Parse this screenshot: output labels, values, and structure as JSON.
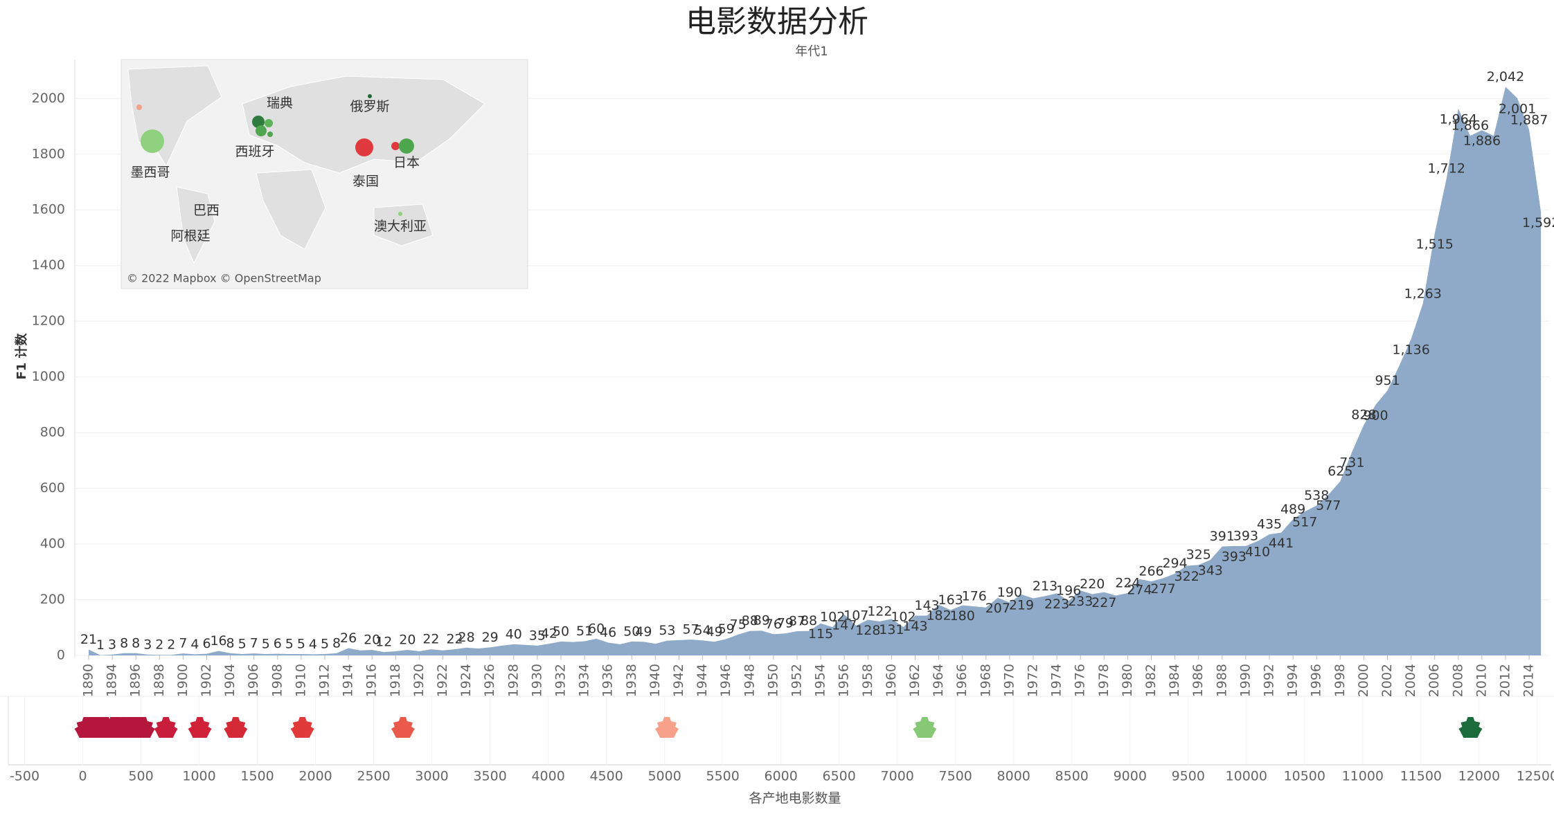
{
  "title": "电影数据分析",
  "subtitle": "年代1",
  "chart_data": [
    {
      "type": "area",
      "y_label": "F1 计数",
      "color": "#8eaac8",
      "categories": [
        1890,
        1891,
        1894,
        1895,
        1896,
        1897,
        1898,
        1899,
        1900,
        1901,
        1902,
        1903,
        1904,
        1905,
        1906,
        1907,
        1908,
        1909,
        1910,
        1911,
        1912,
        1913,
        1914,
        1915,
        1916,
        1917,
        1918,
        1919,
        1920,
        1921,
        1922,
        1923,
        1924,
        1925,
        1926,
        1927,
        1928,
        1929,
        1930,
        1931,
        1932,
        1933,
        1934,
        1935,
        1936,
        1937,
        1938,
        1939,
        1940,
        1941,
        1942,
        1943,
        1944,
        1945,
        1946,
        1947,
        1948,
        1949,
        1950,
        1951,
        1952,
        1953,
        1954,
        1955,
        1956,
        1957,
        1958,
        1959,
        1960,
        1961,
        1962,
        1963,
        1964,
        1965,
        1966,
        1967,
        1968,
        1969,
        1970,
        1971,
        1972,
        1973,
        1974,
        1975,
        1976,
        1977,
        1978,
        1979,
        1980,
        1981,
        1982,
        1983,
        1984,
        1985,
        1986,
        1987,
        1988,
        1989,
        1990,
        1991,
        1992,
        1993,
        1994,
        1995,
        1996,
        1997,
        1998,
        1999,
        2000,
        2001,
        2002,
        2003,
        2004,
        2005,
        2006,
        2007,
        2008,
        2009,
        2010,
        2011,
        2012,
        2013,
        2014,
        2015
      ],
      "values": [
        21,
        1,
        3,
        8,
        8,
        3,
        2,
        2,
        7,
        4,
        6,
        16,
        8,
        5,
        7,
        5,
        6,
        5,
        5,
        4,
        5,
        8,
        26,
        18,
        20,
        12,
        15,
        20,
        15,
        22,
        18,
        22,
        28,
        25,
        29,
        35,
        40,
        38,
        35,
        42,
        50,
        48,
        51,
        60,
        46,
        40,
        50,
        49,
        42,
        53,
        55,
        57,
        54,
        49,
        59,
        75,
        88,
        89,
        76,
        79,
        87,
        88,
        115,
        102,
        147,
        107,
        128,
        122,
        131,
        102,
        143,
        143,
        182,
        163,
        180,
        176,
        172,
        207,
        190,
        219,
        205,
        213,
        223,
        196,
        233,
        220,
        227,
        215,
        224,
        274,
        266,
        277,
        294,
        322,
        325,
        343,
        391,
        393,
        393,
        410,
        435,
        441,
        489,
        517,
        538,
        577,
        625,
        731,
        828,
        900,
        951,
        1040,
        1136,
        1263,
        1515,
        1712,
        1964,
        1866,
        1886,
        1866,
        2042,
        2001,
        1887,
        1592
      ],
      "value_labels": [
        "21",
        "1",
        "3",
        "8",
        "8",
        "3",
        "2",
        "2",
        "7",
        "4",
        "6",
        "16",
        "8",
        "5",
        "7",
        "5",
        "6",
        "5",
        "5",
        "4",
        "5",
        "8",
        "26",
        null,
        "20",
        "12",
        null,
        "20",
        null,
        "22",
        null,
        "22",
        "28",
        null,
        "29",
        null,
        "40",
        null,
        "35",
        "42",
        "50",
        null,
        "51",
        "60",
        "46",
        null,
        "50",
        "49",
        null,
        "53",
        null,
        "57",
        "54",
        "49",
        "59",
        "75",
        "88",
        "89",
        "76",
        "79",
        "87",
        "88",
        "115",
        "102",
        "147",
        "107",
        "128",
        "122",
        "131",
        "102",
        "143",
        "143",
        "182",
        "163",
        "180",
        "176",
        null,
        "207",
        "190",
        "219",
        null,
        "213",
        "223",
        "196",
        "233",
        "220",
        "227",
        null,
        "224",
        "274",
        "266",
        "277",
        "294",
        "322",
        "325",
        "343",
        "391",
        "393",
        "393",
        "410",
        "435",
        "441",
        "489",
        "517",
        "538",
        "577",
        "625",
        "731",
        "828",
        "900",
        "951",
        null,
        "1,136",
        "1,263",
        "1,515",
        "1,712",
        "1,964",
        "1,866",
        "1,886",
        null,
        "2,042",
        "2,001",
        "1,887",
        "1,592"
      ],
      "xticks": [
        1890,
        1894,
        1896,
        1898,
        1900,
        1902,
        1904,
        1906,
        1908,
        1910,
        1912,
        1914,
        1916,
        1918,
        1920,
        1922,
        1924,
        1926,
        1928,
        1930,
        1932,
        1934,
        1936,
        1938,
        1940,
        1942,
        1944,
        1946,
        1948,
        1950,
        1952,
        1954,
        1956,
        1958,
        1960,
        1962,
        1964,
        1966,
        1968,
        1970,
        1972,
        1974,
        1976,
        1978,
        1980,
        1982,
        1984,
        1986,
        1988,
        1990,
        1992,
        1994,
        1996,
        1998,
        2000,
        2002,
        2004,
        2006,
        2008,
        2010,
        2012,
        2014
      ],
      "ylim": [
        0,
        2130
      ],
      "yticks": [
        0,
        200,
        400,
        600,
        800,
        1000,
        1200,
        1400,
        1600,
        1800,
        2000
      ],
      "grid": true
    },
    {
      "type": "strip",
      "x_label": "各产地电影数量",
      "values": [
        30,
        60,
        100,
        150,
        200,
        260,
        300,
        350,
        400,
        440,
        480,
        520,
        715,
        1006,
        1314,
        1888,
        2752,
        5020,
        7236,
        11926
      ],
      "colors": [
        "#b5163c",
        "#b5163c",
        "#b5163c",
        "#b5163c",
        "#b5163c",
        "#b5163c",
        "#b5163c",
        "#b5163c",
        "#b5163c",
        "#b5163c",
        "#b5163c",
        "#b5163c",
        "#c81e3c",
        "#d02138",
        "#d42a35",
        "#e03b3a",
        "#ea5a4a",
        "#f7a08a",
        "#86c876",
        "#1c6b3a"
      ],
      "xlim": [
        -640,
        12620
      ],
      "xticks": [
        -500,
        0,
        500,
        1000,
        1500,
        2000,
        2500,
        3000,
        3500,
        4000,
        4500,
        5000,
        5500,
        6000,
        6500,
        7000,
        7500,
        8000,
        8500,
        9000,
        9500,
        10000,
        10500,
        11000,
        11500,
        12000,
        12500
      ]
    }
  ],
  "map": {
    "labels": [
      "瑞典",
      "俄罗斯",
      "西班牙",
      "墨西哥",
      "日本",
      "泰国",
      "巴西",
      "阿根廷",
      "澳大利亚"
    ],
    "credit": "© 2022 Mapbox © OpenStreetMap"
  }
}
